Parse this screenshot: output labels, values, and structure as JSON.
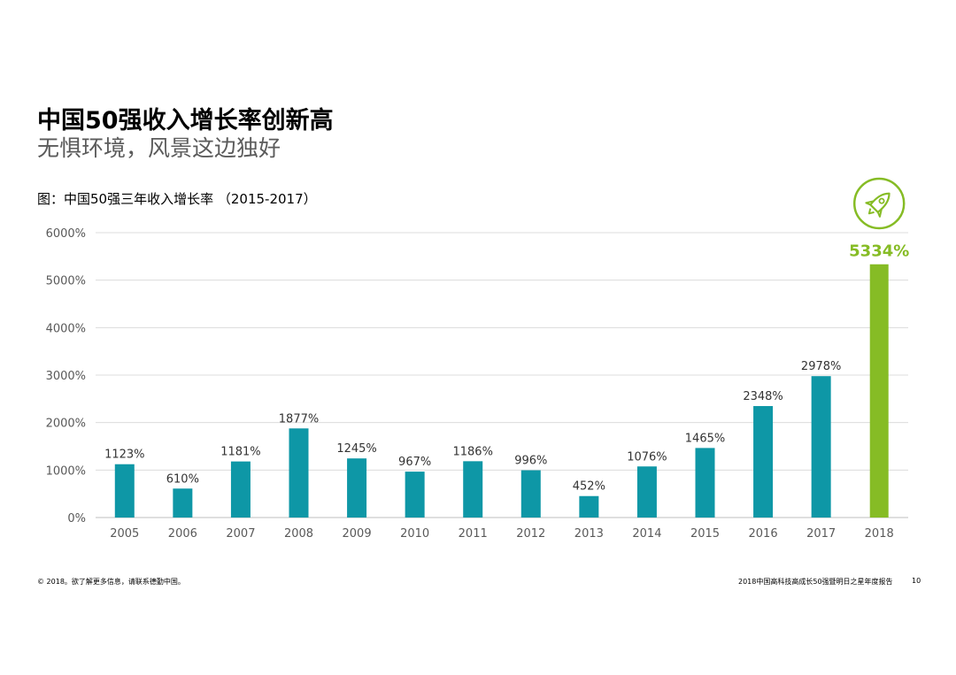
{
  "page": {
    "title": "中国50强收入增长率创新高",
    "subtitle": "无惧环境，风景这边独好",
    "caption": "图：中国50强三年收入增长率 （2015-2017）",
    "footer_left": "© 2018。欲了解更多信息，请联系德勤中国。",
    "footer_right": "2018中国高科技高成长50强暨明日之星年度报告",
    "page_number": "10"
  },
  "chart_data": {
    "type": "bar",
    "categories": [
      "2005",
      "2006",
      "2007",
      "2008",
      "2009",
      "2010",
      "2011",
      "2012",
      "2013",
      "2014",
      "2015",
      "2016",
      "2017",
      "2018"
    ],
    "values": [
      1123,
      610,
      1181,
      1877,
      1245,
      967,
      1186,
      996,
      452,
      1076,
      1465,
      2348,
      2978,
      5334
    ],
    "value_labels": [
      "1123%",
      "610%",
      "1181%",
      "1877%",
      "1245%",
      "967%",
      "1186%",
      "996%",
      "452%",
      "1076%",
      "1465%",
      "2348%",
      "2978%",
      "5334%"
    ],
    "ylim": [
      0,
      6000
    ],
    "yticks": [
      0,
      1000,
      2000,
      3000,
      4000,
      5000,
      6000
    ],
    "ytick_labels": [
      "0%",
      "1000%",
      "2000%",
      "3000%",
      "4000%",
      "5000%",
      "6000%"
    ],
    "grid": true,
    "highlight_category": "2018",
    "colors": {
      "bar": "#0e97a6",
      "highlight": "#86bc25",
      "grid": "#dcdcdc",
      "tick_text": "#595959",
      "label_text": "#333333"
    },
    "icon": "rocket-icon"
  }
}
